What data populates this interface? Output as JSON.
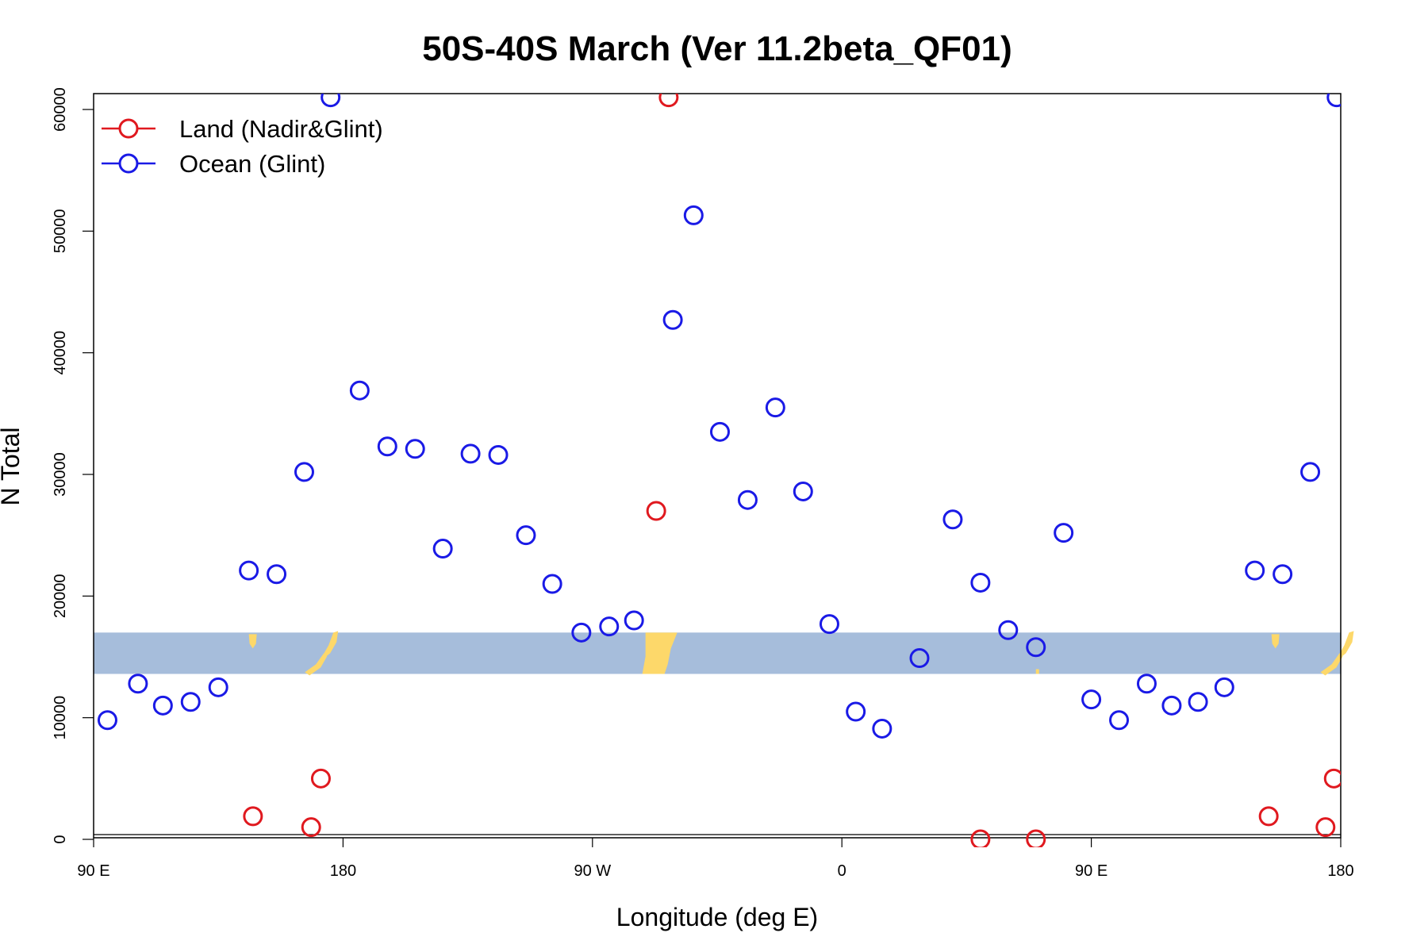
{
  "chart_data": {
    "type": "scatter",
    "title": "50S-40S March (Ver 11.2beta_QF01)",
    "xlabel": "Longitude (deg E)",
    "ylabel": "N Total",
    "x_range": [
      90,
      540
    ],
    "ylim": [
      0,
      61000
    ],
    "x_ticks": [
      {
        "value": 90,
        "label": "90 E"
      },
      {
        "value": 180,
        "label": "180"
      },
      {
        "value": 270,
        "label": "90 W"
      },
      {
        "value": 360,
        "label": "0"
      },
      {
        "value": 450,
        "label": "90 E"
      },
      {
        "value": 540,
        "label": "180"
      }
    ],
    "y_ticks": [
      {
        "value": 0,
        "label": "0"
      },
      {
        "value": 10000,
        "label": "10000"
      },
      {
        "value": 20000,
        "label": "20000"
      },
      {
        "value": 30000,
        "label": "30000"
      },
      {
        "value": 40000,
        "label": "40000"
      },
      {
        "value": 50000,
        "label": "50000"
      },
      {
        "value": 60000,
        "label": "60000"
      }
    ],
    "legend_position": "top-left",
    "grid": false,
    "map_strip": {
      "y_range": [
        13600,
        17000
      ],
      "ocean_color": "#a6bddb",
      "land_color": "#fdd86a"
    },
    "series": [
      {
        "name": "Land (Nadir&Glint)",
        "color": "#e0191f",
        "points": [
          [
            147.5,
            1900
          ],
          [
            168.5,
            1000
          ],
          [
            172,
            5000
          ],
          [
            293,
            27000
          ],
          [
            297.5,
            61000
          ],
          [
            410,
            0
          ],
          [
            430,
            0
          ],
          [
            537.5,
            5000
          ],
          [
            534.5,
            1000
          ],
          [
            514,
            1900
          ]
        ]
      },
      {
        "name": "Ocean (Glint)",
        "color": "#1a1ae6",
        "points": [
          [
            95,
            9800
          ],
          [
            106,
            12800
          ],
          [
            115,
            11000
          ],
          [
            125,
            11300
          ],
          [
            135,
            12500
          ],
          [
            146,
            22100
          ],
          [
            156,
            21800
          ],
          [
            166,
            30200
          ],
          [
            175.5,
            61000
          ],
          [
            186,
            36900
          ],
          [
            196,
            32300
          ],
          [
            206,
            32100
          ],
          [
            216,
            23900
          ],
          [
            226,
            31700
          ],
          [
            236,
            31600
          ],
          [
            246,
            25000
          ],
          [
            255.5,
            21000
          ],
          [
            266,
            17000
          ],
          [
            276,
            17500
          ],
          [
            285,
            18000
          ],
          [
            299,
            42700
          ],
          [
            306.5,
            51300
          ],
          [
            316,
            33500
          ],
          [
            326,
            27900
          ],
          [
            336,
            35500
          ],
          [
            346,
            28600
          ],
          [
            355.5,
            17700
          ],
          [
            365,
            10500
          ],
          [
            374.5,
            9100
          ],
          [
            388,
            14900
          ],
          [
            400,
            26300
          ],
          [
            410,
            21100
          ],
          [
            420,
            17200
          ],
          [
            430,
            15800
          ],
          [
            440,
            25200
          ],
          [
            450,
            11500
          ],
          [
            460,
            9800
          ],
          [
            470,
            12800
          ],
          [
            479,
            11000
          ],
          [
            488.5,
            11300
          ],
          [
            498,
            12500
          ],
          [
            509,
            22100
          ],
          [
            519,
            21800
          ],
          [
            529,
            30200
          ],
          [
            538.5,
            61000
          ]
        ]
      }
    ]
  }
}
